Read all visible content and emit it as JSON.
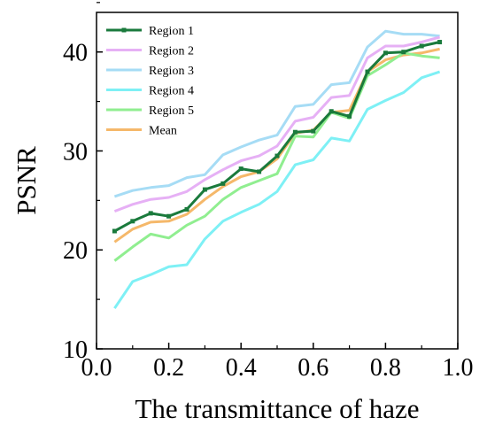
{
  "chart_data": {
    "type": "line",
    "xlabel": "The transmittance of haze",
    "ylabel": "PSNR",
    "xlim": [
      0.0,
      1.0
    ],
    "ylim": [
      10,
      44
    ],
    "xticks": [
      "0.0",
      "0.2",
      "0.4",
      "0.6",
      "0.8",
      "1.0"
    ],
    "yticks": [
      "10",
      "20",
      "30",
      "40"
    ],
    "grid": false,
    "legend_position": "top-left",
    "x": [
      0.05,
      0.1,
      0.15,
      0.2,
      0.25,
      0.3,
      0.35,
      0.4,
      0.45,
      0.5,
      0.55,
      0.6,
      0.65,
      0.7,
      0.75,
      0.8,
      0.85,
      0.9,
      0.95
    ],
    "series": [
      {
        "name": "Region 1",
        "color": "#1a7a3c",
        "marker": true,
        "values": [
          21.9,
          22.9,
          23.7,
          23.4,
          24.1,
          26.1,
          26.7,
          28.2,
          27.9,
          29.5,
          31.9,
          32.0,
          34.0,
          33.5,
          38.0,
          39.9,
          40.0,
          40.6,
          41.0
        ]
      },
      {
        "name": "Region 2",
        "color": "#e6b0f5",
        "marker": false,
        "values": [
          23.9,
          24.6,
          25.1,
          25.3,
          25.9,
          27.1,
          28.1,
          29.0,
          29.5,
          30.5,
          33.0,
          33.4,
          35.4,
          35.6,
          39.4,
          40.6,
          40.6,
          41.0,
          41.5
        ]
      },
      {
        "name": "Region 3",
        "color": "#a6dcf5",
        "marker": false,
        "values": [
          25.4,
          26.0,
          26.3,
          26.5,
          27.3,
          27.6,
          29.6,
          30.4,
          31.1,
          31.6,
          34.5,
          34.7,
          36.7,
          36.9,
          40.5,
          42.1,
          41.8,
          41.8,
          41.6
        ]
      },
      {
        "name": "Region 4",
        "color": "#7ef0f5",
        "marker": false,
        "values": [
          14.1,
          16.8,
          17.5,
          18.3,
          18.5,
          21.1,
          22.9,
          23.8,
          24.6,
          25.9,
          28.6,
          29.1,
          31.3,
          31.0,
          34.2,
          35.1,
          35.9,
          37.4,
          38.0
        ]
      },
      {
        "name": "Region 5",
        "color": "#90ee90",
        "marker": false,
        "values": [
          18.9,
          20.3,
          21.6,
          21.2,
          22.5,
          23.4,
          25.1,
          26.3,
          27.0,
          27.7,
          31.5,
          31.4,
          33.9,
          33.3,
          37.6,
          38.7,
          39.9,
          39.6,
          39.4
        ]
      },
      {
        "name": "Mean",
        "color": "#f5b86a",
        "marker": false,
        "values": [
          20.8,
          22.1,
          22.8,
          22.9,
          23.6,
          25.1,
          26.4,
          27.4,
          27.9,
          29.2,
          31.8,
          32.1,
          33.9,
          34.1,
          38.0,
          39.2,
          39.7,
          39.9,
          40.3
        ]
      }
    ]
  }
}
